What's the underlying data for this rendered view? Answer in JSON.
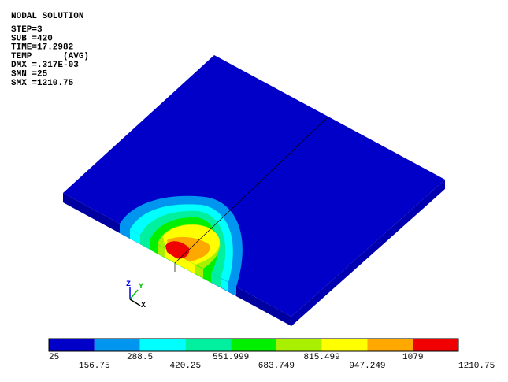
{
  "header": {
    "title": "NODAL SOLUTION",
    "lines": [
      "STEP=3",
      "SUB =420",
      "TIME=17.2982",
      "TEMP      (AVG)",
      "DMX =.317E-03",
      "SMN =25",
      "SMX =1210.75"
    ]
  },
  "triad": {
    "z": "Z",
    "y": "Y",
    "x": "X"
  },
  "legend": {
    "colors": [
      "#0000c8",
      "#0096f0",
      "#00ffff",
      "#00f0a0",
      "#00f000",
      "#a8f000",
      "#ffff00",
      "#ffa800",
      "#f00000"
    ],
    "labels": [
      "25",
      "156.75",
      "288.5",
      "420.25",
      "551.999",
      "683.749",
      "815.499",
      "947.249",
      "1079",
      "1210.75"
    ]
  }
}
